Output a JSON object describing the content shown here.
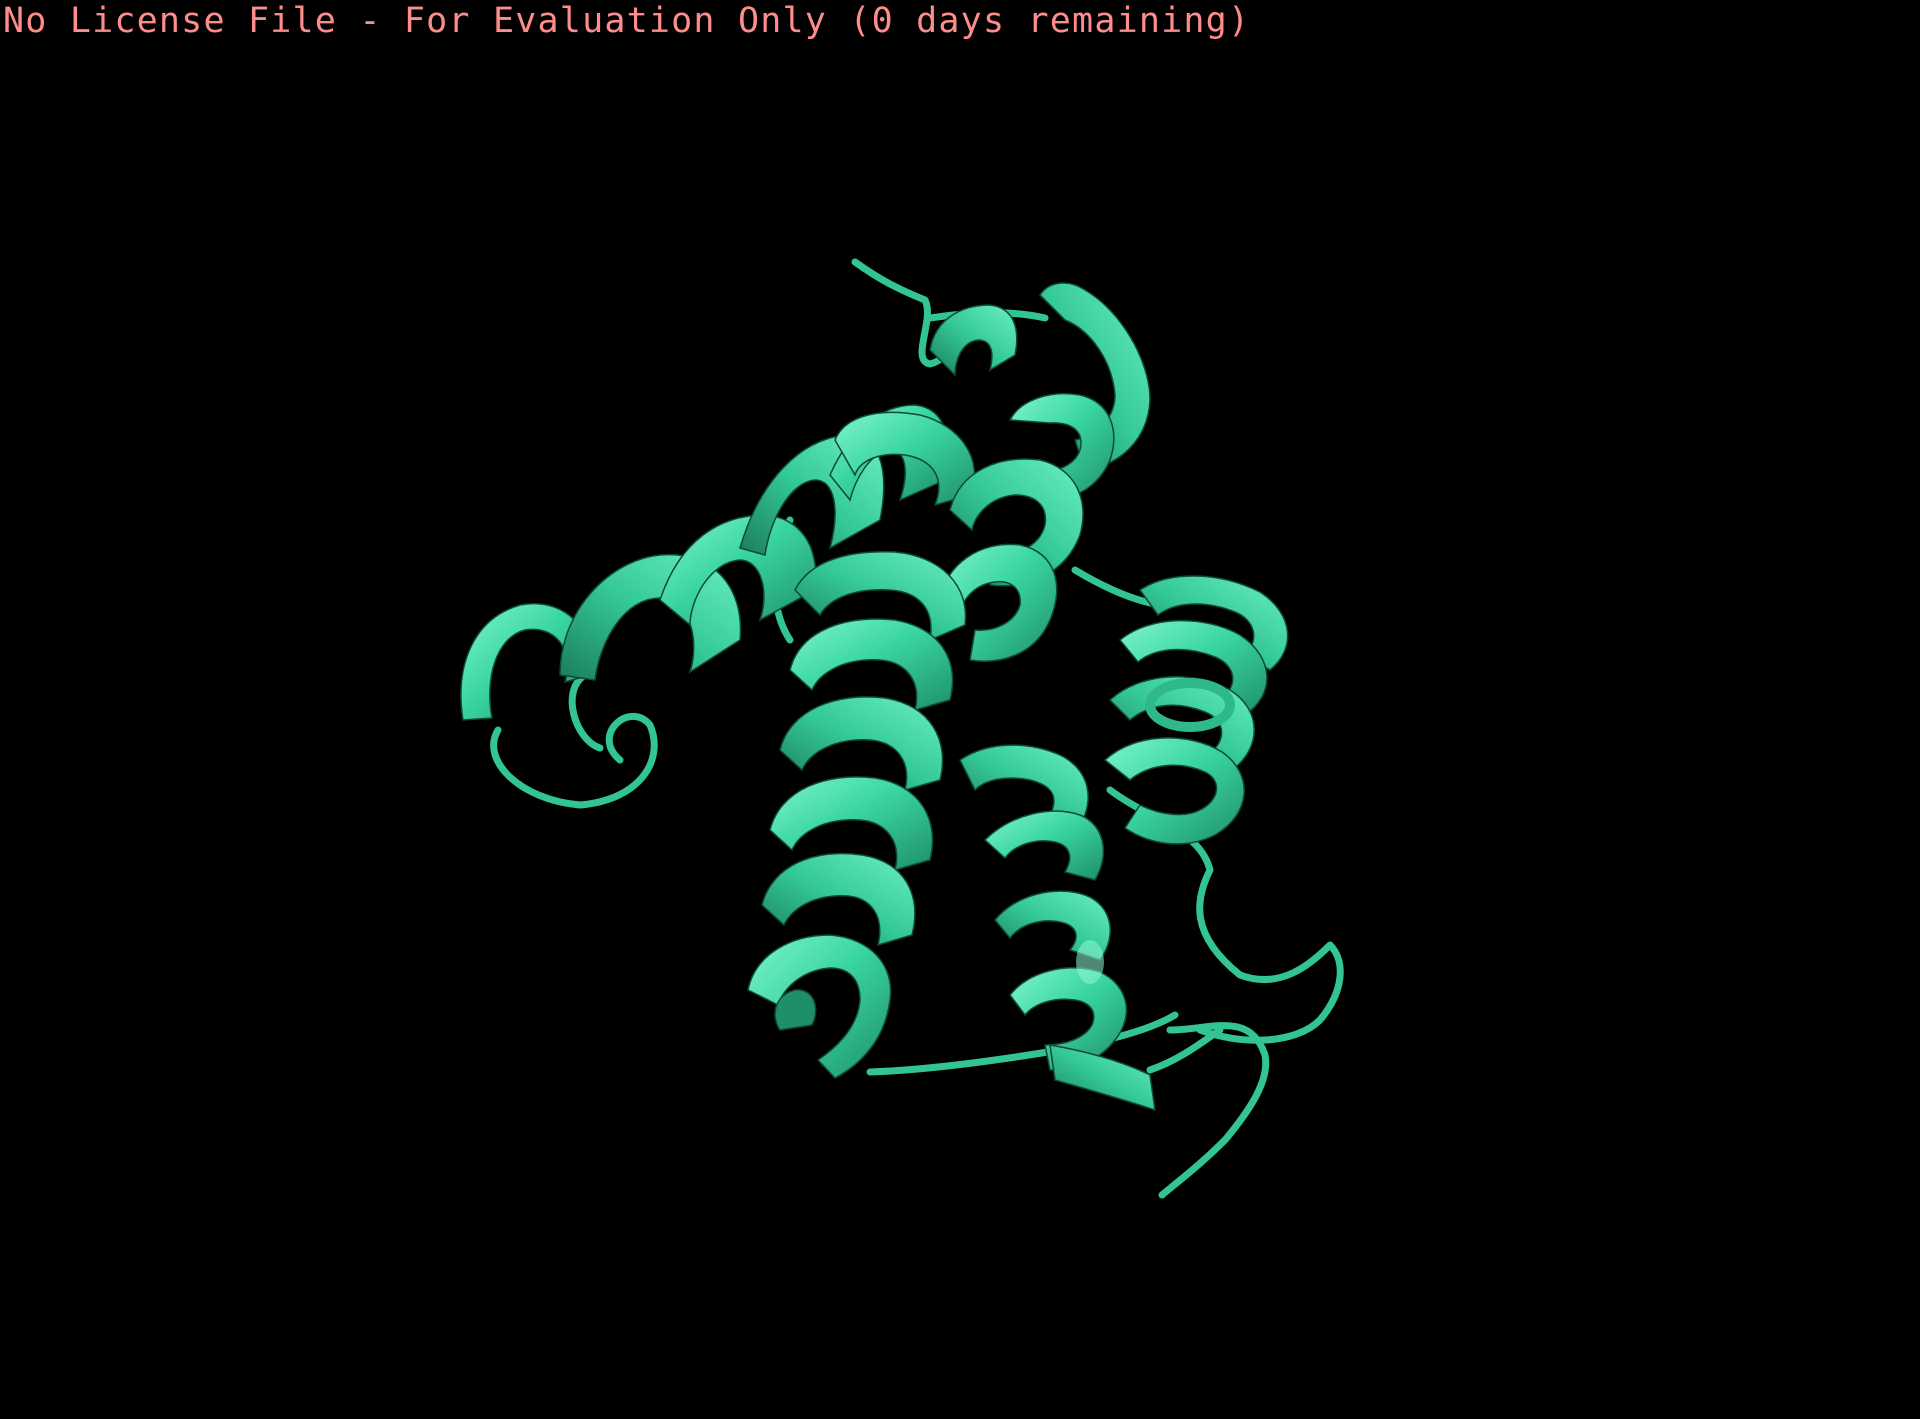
{
  "viewer": {
    "background_color": "#000000",
    "license_notice": "No License File - For Evaluation Only (0 days remaining)",
    "license_notice_color": "#ff8c8c"
  },
  "molecule": {
    "representation": "cartoon",
    "secondary_structure": "alpha-helix bundle",
    "ribbon_color": "#3ad6a0",
    "ribbon_shadow_color": "#1f8f68",
    "ribbon_highlight_color": "#7ff5cc"
  }
}
